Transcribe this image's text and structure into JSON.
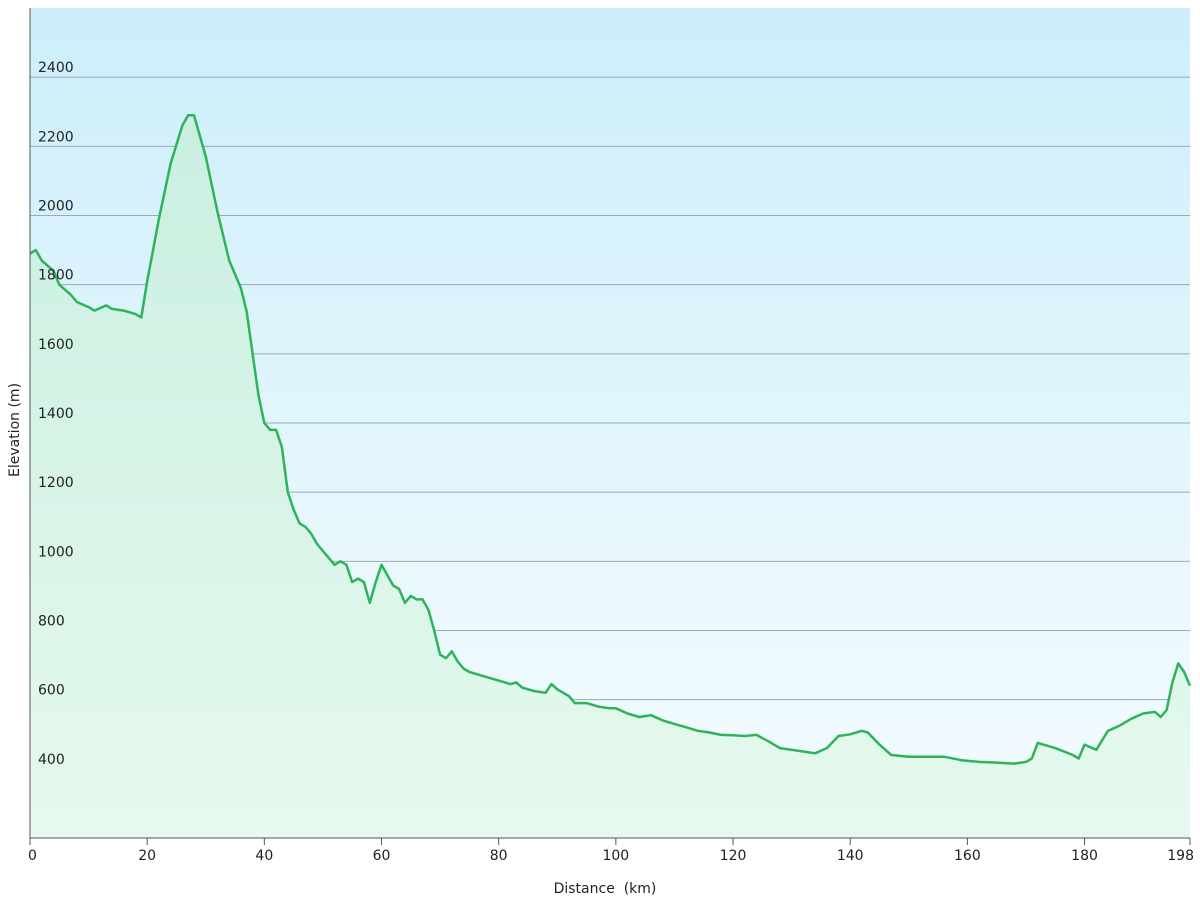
{
  "chart_data": {
    "type": "area",
    "title": "",
    "xlabel": "Distance  (km)",
    "ylabel": "Elevation (m)",
    "xlim": [
      0,
      198
    ],
    "ylim": [
      200,
      2600
    ],
    "x_ticks": [
      0,
      20,
      40,
      60,
      80,
      100,
      120,
      140,
      160,
      180,
      198
    ],
    "y_ticks": [
      400,
      600,
      800,
      1000,
      1200,
      1400,
      1600,
      1800,
      2000,
      2200,
      2400
    ],
    "grid": "horizontal",
    "legend": "none",
    "colors": {
      "line": "#2db45a",
      "fill_top": "#c9efe0",
      "fill_bottom": "#e6f9ee",
      "background_top": "#cdeefa",
      "background_bottom": "#f5fcfe",
      "grid": "#9aaab2",
      "axis": "#555555"
    },
    "series": [
      {
        "x": [
          0,
          1,
          2,
          4,
          5,
          7,
          8,
          10,
          11,
          13,
          14,
          16,
          18,
          19,
          20,
          22,
          24,
          26,
          27,
          28,
          29,
          30,
          32,
          34,
          36,
          37,
          38,
          39,
          40,
          41,
          42,
          43,
          44,
          45,
          46,
          47,
          48,
          49,
          50,
          51,
          52,
          53,
          54,
          55,
          56,
          57,
          58,
          59,
          60,
          61,
          62,
          63,
          64,
          65,
          66,
          67,
          68,
          69,
          70,
          71,
          72,
          73,
          74,
          75,
          76,
          78,
          80,
          82,
          83,
          84,
          86,
          88,
          89,
          90,
          92,
          93,
          95,
          97,
          99,
          100,
          102,
          104,
          106,
          108,
          110,
          112,
          114,
          116,
          118,
          120,
          122,
          124,
          126,
          128,
          130,
          132,
          134,
          136,
          138,
          140,
          142,
          143,
          145,
          147,
          150,
          153,
          156,
          159,
          162,
          165,
          168,
          170,
          171,
          172,
          175,
          178,
          179,
          180,
          182,
          184,
          186,
          188,
          190,
          192,
          193,
          194,
          195,
          196,
          197,
          198
        ],
        "y": [
          1890,
          1900,
          1870,
          1840,
          1800,
          1770,
          1750,
          1735,
          1725,
          1740,
          1730,
          1725,
          1715,
          1705,
          1810,
          1990,
          2150,
          2260,
          2290,
          2290,
          2230,
          2170,
          2010,
          1870,
          1790,
          1720,
          1600,
          1480,
          1400,
          1380,
          1380,
          1330,
          1200,
          1150,
          1110,
          1100,
          1080,
          1050,
          1030,
          1010,
          990,
          1000,
          990,
          940,
          950,
          940,
          880,
          940,
          990,
          960,
          930,
          920,
          880,
          900,
          890,
          890,
          860,
          800,
          730,
          720,
          740,
          710,
          690,
          680,
          675,
          665,
          655,
          645,
          650,
          635,
          625,
          620,
          645,
          630,
          610,
          590,
          590,
          580,
          575,
          575,
          560,
          550,
          555,
          540,
          530,
          520,
          510,
          505,
          498,
          497,
          495,
          498,
          480,
          460,
          455,
          450,
          445,
          460,
          495,
          500,
          510,
          505,
          470,
          440,
          435,
          435,
          435,
          425,
          420,
          418,
          415,
          420,
          430,
          475,
          460,
          440,
          430,
          470,
          455,
          510,
          525,
          545,
          560,
          565,
          550,
          570,
          650,
          705,
          680,
          640
        ]
      }
    ]
  }
}
